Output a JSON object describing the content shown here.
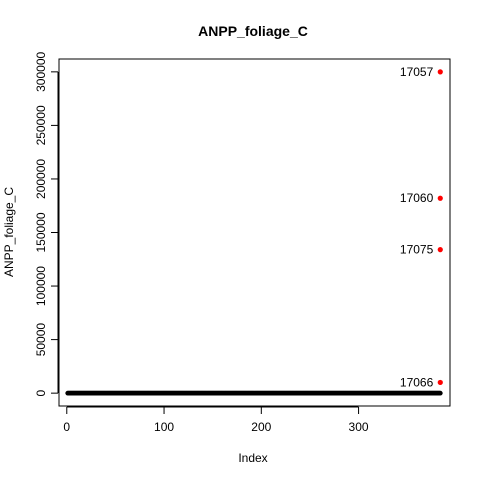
{
  "chart_data": {
    "type": "scatter",
    "title": "ANPP_foliage_C",
    "xlabel": "Index",
    "ylabel": "ANPP_foliage_C",
    "xlim": [
      -8,
      394
    ],
    "ylim": [
      -12000,
      312000
    ],
    "x_ticks": [
      0,
      100,
      200,
      300
    ],
    "y_ticks": [
      0,
      50000,
      100000,
      150000,
      200000,
      250000,
      300000
    ],
    "grid": false,
    "legend": "none",
    "baseline_points": {
      "x_from": 1,
      "x_to": 384,
      "y": 0,
      "color": "#000000"
    },
    "outliers": [
      {
        "x": 384,
        "y": 300000,
        "label": "17057",
        "color": "#ff0000"
      },
      {
        "x": 384,
        "y": 182000,
        "label": "17060",
        "color": "#ff0000"
      },
      {
        "x": 384,
        "y": 134000,
        "label": "17075",
        "color": "#ff0000"
      },
      {
        "x": 384,
        "y": 10000,
        "label": "17066",
        "color": "#ff0000"
      }
    ]
  }
}
